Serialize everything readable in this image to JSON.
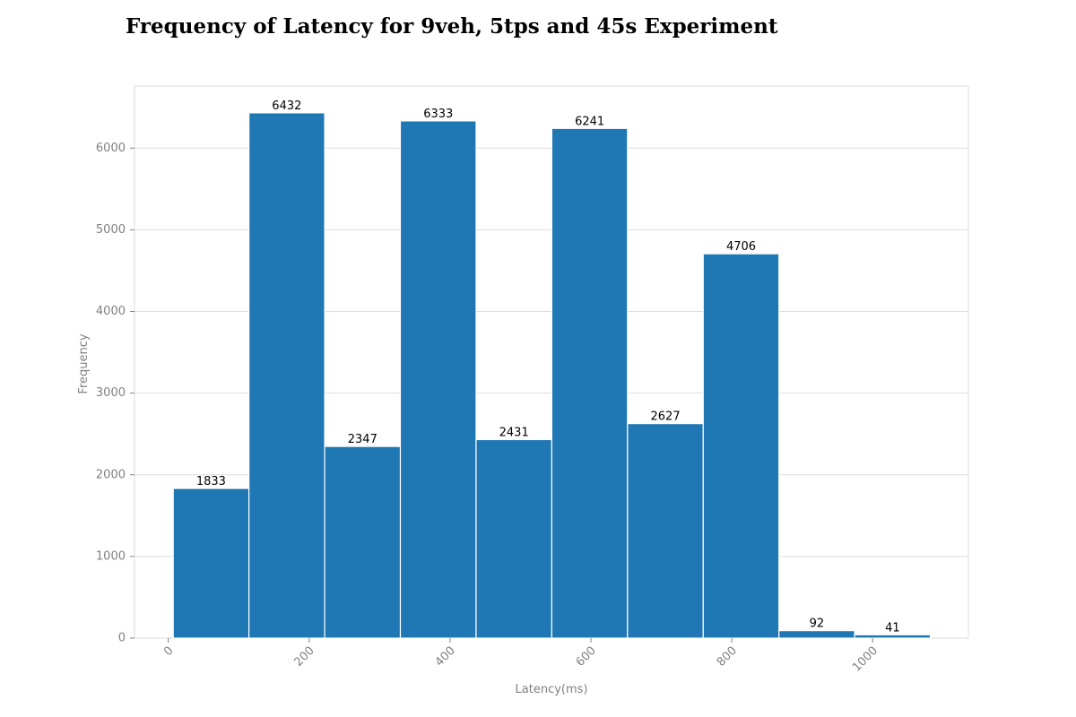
{
  "chart_data": {
    "type": "bar",
    "title": "Frequency of Latency for 9veh, 5tps and 45s Experiment",
    "xlabel": "Latency(ms)",
    "ylabel": "Frequency",
    "bin_edges": [
      7,
      114.5,
      222,
      329.5,
      437,
      544.5,
      652,
      759.5,
      867,
      974.5,
      1082
    ],
    "values": [
      1833,
      6432,
      2347,
      6333,
      2431,
      6241,
      2627,
      4706,
      92,
      41
    ],
    "xlim": [
      -48,
      1136
    ],
    "ylim": [
      0,
      6760
    ],
    "xticks": [
      0,
      200,
      400,
      600,
      800,
      1000
    ],
    "xtick_labels": [
      "0",
      "200",
      "400",
      "600",
      "800",
      "1000"
    ],
    "yticks": [
      0,
      1000,
      2000,
      3000,
      4000,
      5000,
      6000
    ],
    "ytick_labels": [
      "0",
      "1000",
      "2000",
      "3000",
      "4000",
      "5000",
      "6000"
    ],
    "grid": "horizontal",
    "bar_color": "#1f77b4"
  }
}
